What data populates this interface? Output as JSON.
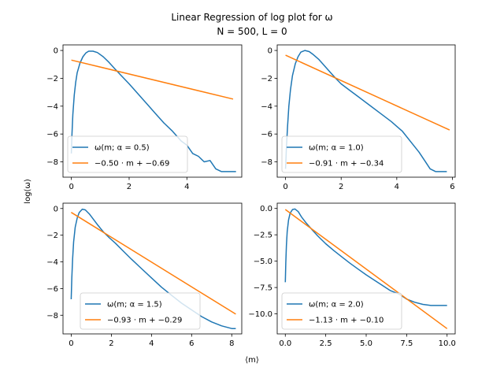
{
  "chart_data": {
    "type": "line",
    "title": "Linear Regression of log plot for ω",
    "subtitle": "N = 500, L = 0",
    "xlabel": "⟨m⟩",
    "ylabel": "log(ω)",
    "colors": {
      "data": "#1f77b4",
      "fit": "#ff7f0e"
    },
    "panels": [
      {
        "alpha": "0.5",
        "xlim": [
          -0.29,
          5.9
        ],
        "ylim": [
          -9.1,
          0.4
        ],
        "xticks": [
          0,
          2,
          4
        ],
        "yticks": [
          0,
          -2,
          -4,
          -6,
          -8
        ],
        "legend": "lower-left",
        "series": [
          {
            "name": "ω(m; α = 0.5)",
            "kind": "data",
            "x": [
              0.0,
              0.02,
              0.05,
              0.1,
              0.15,
              0.2,
              0.3,
              0.4,
              0.5,
              0.6,
              0.75,
              0.9,
              1.1,
              1.3,
              1.5,
              1.7,
              2.0,
              2.3,
              2.6,
              2.9,
              3.2,
              3.5,
              3.8,
              4.0,
              4.2,
              4.4,
              4.6,
              4.8,
              5.0,
              5.2,
              5.5,
              5.7
            ],
            "y": [
              -7.4,
              -6.0,
              -4.6,
              -3.2,
              -2.3,
              -1.6,
              -0.9,
              -0.45,
              -0.18,
              -0.05,
              -0.05,
              -0.15,
              -0.45,
              -0.85,
              -1.3,
              -1.75,
              -2.4,
              -3.1,
              -3.8,
              -4.5,
              -5.2,
              -5.8,
              -6.5,
              -6.8,
              -7.4,
              -7.6,
              -8.0,
              -7.9,
              -8.5,
              -8.7,
              -8.7,
              -8.7
            ]
          },
          {
            "name": "−0.50 · m + −0.69",
            "kind": "fit",
            "x": [
              0,
              5.6
            ],
            "y": [
              -0.69,
              -3.49
            ]
          }
        ]
      },
      {
        "alpha": "1.0",
        "xlim": [
          -0.3,
          6.1
        ],
        "ylim": [
          -9.1,
          0.4
        ],
        "xticks": [
          0,
          2,
          4,
          6
        ],
        "yticks": [
          0,
          -2,
          -4,
          -6,
          -8
        ],
        "legend": "lower-left",
        "series": [
          {
            "name": "ω(m; α = 1.0)",
            "kind": "data",
            "x": [
              0.0,
              0.03,
              0.07,
              0.12,
              0.18,
              0.25,
              0.35,
              0.45,
              0.55,
              0.7,
              0.85,
              1.0,
              1.2,
              1.4,
              1.6,
              1.8,
              2.0,
              2.3,
              2.6,
              3.0,
              3.4,
              3.8,
              4.2,
              4.6,
              4.8,
              5.0,
              5.2,
              5.4,
              5.6,
              5.8
            ],
            "y": [
              -8.5,
              -7.0,
              -5.5,
              -4.0,
              -2.8,
              -1.8,
              -0.95,
              -0.45,
              -0.12,
              0.0,
              -0.08,
              -0.3,
              -0.65,
              -1.1,
              -1.55,
              -2.0,
              -2.4,
              -2.85,
              -3.3,
              -3.9,
              -4.5,
              -5.1,
              -5.8,
              -6.8,
              -7.3,
              -7.9,
              -8.5,
              -8.7,
              -8.7,
              -8.7
            ]
          },
          {
            "name": "−0.91 · m + −0.34",
            "kind": "fit",
            "x": [
              0,
              5.9
            ],
            "y": [
              -0.34,
              -5.71
            ]
          }
        ]
      },
      {
        "alpha": "1.5",
        "xlim": [
          -0.41,
          8.5
        ],
        "ylim": [
          -9.4,
          0.4
        ],
        "xticks": [
          0,
          2,
          4,
          6,
          8
        ],
        "yticks": [
          0,
          -2,
          -4,
          -6,
          -8
        ],
        "legend": "lower-right",
        "series": [
          {
            "name": "ω(m; α = 1.5)",
            "kind": "data",
            "x": [
              0.0,
              0.03,
              0.07,
              0.12,
              0.2,
              0.3,
              0.4,
              0.55,
              0.7,
              0.9,
              1.1,
              1.3,
              1.6,
              1.9,
              2.2,
              2.6,
              3.0,
              3.5,
              4.0,
              4.5,
              5.0,
              5.5,
              6.0,
              6.5,
              7.0,
              7.5,
              8.0,
              8.2
            ],
            "y": [
              -6.8,
              -5.2,
              -3.8,
              -2.5,
              -1.4,
              -0.7,
              -0.3,
              -0.05,
              -0.1,
              -0.4,
              -0.8,
              -1.2,
              -1.75,
              -2.2,
              -2.6,
              -3.2,
              -3.8,
              -4.5,
              -5.2,
              -5.9,
              -6.5,
              -7.1,
              -7.6,
              -8.1,
              -8.5,
              -8.8,
              -9.0,
              -9.0
            ]
          },
          {
            "name": "−0.93 · m + −0.29",
            "kind": "fit",
            "x": [
              0,
              8.2
            ],
            "y": [
              -0.29,
              -7.92
            ]
          }
        ]
      },
      {
        "alpha": "2.0",
        "xlim": [
          -0.5,
          10.5
        ],
        "ylim": [
          -11.9,
          0.5
        ],
        "xticks": [
          0.0,
          2.5,
          5.0,
          7.5,
          10.0
        ],
        "yticks": [
          0.0,
          -2.5,
          -5.0,
          -7.5,
          -10.0
        ],
        "legend": "lower-left",
        "series": [
          {
            "name": "ω(m; α = 2.0)",
            "kind": "data",
            "x": [
              0.0,
              0.03,
              0.07,
              0.12,
              0.2,
              0.3,
              0.45,
              0.6,
              0.8,
              1.0,
              1.3,
              1.7,
              2.0,
              2.5,
              3.0,
              3.5,
              4.0,
              4.5,
              5.0,
              5.5,
              6.0,
              6.5,
              7.0,
              7.5,
              8.0,
              8.5,
              9.0,
              10.0
            ],
            "y": [
              -7.0,
              -5.2,
              -3.5,
              -2.2,
              -1.1,
              -0.45,
              -0.1,
              -0.05,
              -0.3,
              -0.8,
              -1.4,
              -2.1,
              -2.6,
              -3.35,
              -4.0,
              -4.6,
              -5.2,
              -5.75,
              -6.3,
              -6.8,
              -7.3,
              -7.8,
              -8.1,
              -8.6,
              -8.9,
              -9.1,
              -9.2,
              -9.2
            ]
          },
          {
            "name": "−1.13 · m + −0.10",
            "kind": "fit",
            "x": [
              0,
              10.0
            ],
            "y": [
              -0.1,
              -11.4
            ]
          }
        ]
      }
    ]
  }
}
